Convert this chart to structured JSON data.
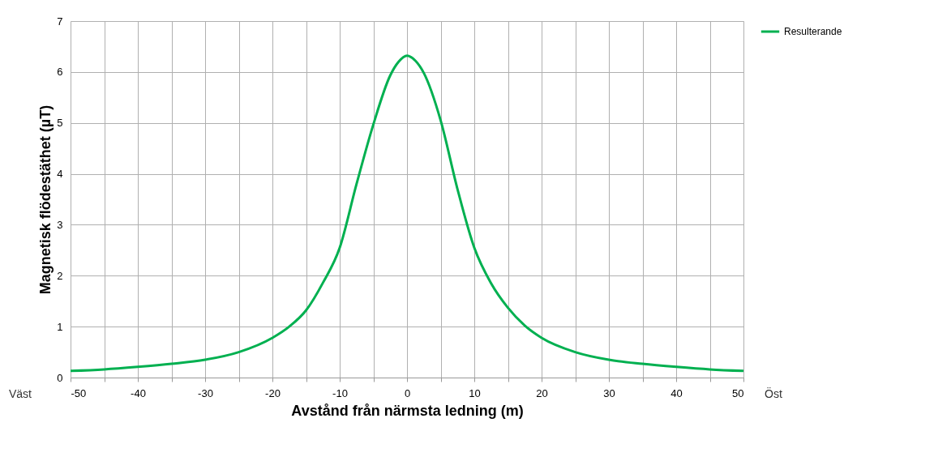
{
  "chart_data": {
    "type": "line",
    "xlabel": "Avstånd från närmsta ledning (m)",
    "ylabel": "Magnetisk flödestäthet (µT)",
    "x": [
      -50,
      -45,
      -40,
      -35,
      -30,
      -25,
      -20,
      -17.5,
      -15,
      -12.5,
      -10,
      -7.5,
      -5,
      -2.5,
      -1.25,
      0,
      1.25,
      2.5,
      5,
      7.5,
      10,
      12.5,
      15,
      17.5,
      20,
      25,
      30,
      35,
      40,
      45,
      50
    ],
    "series": [
      {
        "name": "Resulterande",
        "color": "#00b050",
        "values": [
          0.13,
          0.16,
          0.21,
          0.27,
          0.35,
          0.5,
          0.78,
          1.0,
          1.32,
          1.86,
          2.55,
          3.8,
          4.97,
          5.93,
          6.2,
          6.32,
          6.22,
          5.98,
          5.05,
          3.7,
          2.55,
          1.85,
          1.37,
          1.02,
          0.78,
          0.5,
          0.35,
          0.27,
          0.21,
          0.16,
          0.13
        ]
      }
    ],
    "xlim": [
      -50,
      50
    ],
    "xticks": [
      -50,
      -40,
      -30,
      -20,
      -10,
      0,
      10,
      20,
      30,
      40,
      50
    ],
    "ylim": [
      0,
      7
    ],
    "yticks": [
      0,
      1,
      2,
      3,
      4,
      5,
      6,
      7
    ],
    "grid": true,
    "legend": "right",
    "marker": "none",
    "line_style": "solid",
    "annotations": [
      "Väst",
      "Öst"
    ]
  }
}
